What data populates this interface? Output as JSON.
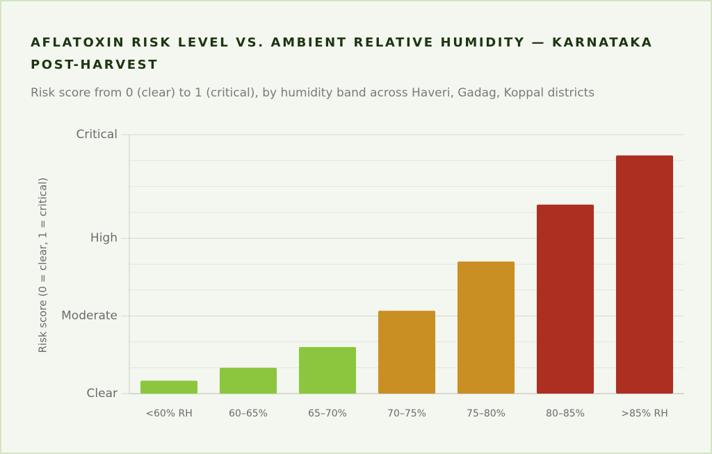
{
  "chart_data": {
    "type": "bar",
    "title": "AFLATOXIN RISK LEVEL VS. AMBIENT RELATIVE HUMIDITY — KARNATAKA POST-HARVEST",
    "subtitle": "Risk score from 0 (clear) to 1 (critical), by humidity band across Haveri, Gadag, Koppal districts",
    "y_label": "Risk score (0 = clear, 1 = critical)",
    "categories": [
      "<60% RH",
      "60–65%",
      "65–70%",
      "70–75%",
      "75–80%",
      "80–85%",
      ">85% RH"
    ],
    "values": [
      0.05,
      0.1,
      0.18,
      0.32,
      0.51,
      0.73,
      0.92
    ],
    "colors": [
      "#8cc63f",
      "#8cc63f",
      "#8cc63f",
      "#c98f22",
      "#c98f22",
      "#ad2f21",
      "#ad2f21"
    ],
    "ylim": [
      0,
      1
    ],
    "yticks": [
      {
        "value": 0,
        "label": "Clear"
      },
      {
        "value": 0.3,
        "label": "Moderate"
      },
      {
        "value": 0.6,
        "label": "High"
      },
      {
        "value": 1,
        "label": "Critical"
      }
    ],
    "minor_grid_step": 0.1,
    "grid": true
  }
}
